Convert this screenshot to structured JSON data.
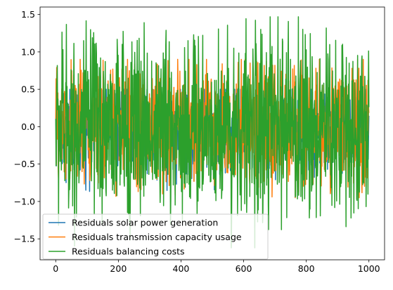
{
  "chart_data": {
    "type": "line",
    "title": "",
    "xlabel": "",
    "ylabel": "",
    "xlim": [
      -50,
      1050
    ],
    "ylim": [
      -1.78,
      1.6
    ],
    "x_ticks": [
      0,
      200,
      400,
      600,
      800,
      1000
    ],
    "y_ticks": [
      -1.5,
      -1.0,
      -0.5,
      0.0,
      0.5,
      1.0,
      1.5
    ],
    "x_tick_labels": [
      "0",
      "200",
      "400",
      "600",
      "800",
      "1000"
    ],
    "y_tick_labels": [
      "−1.5",
      "−1.0",
      "−0.5",
      "0.0",
      "0.5",
      "1.0",
      "1.5"
    ],
    "n_points": 1000,
    "grid": false,
    "legend_position": "lower-left",
    "series": [
      {
        "name": "Residuals solar power generation",
        "color": "#1f77b4",
        "min": -0.95,
        "max": 0.5,
        "x_range": [
          0,
          1000
        ]
      },
      {
        "name": "Residuals transmission capacity usage",
        "color": "#ff7f0e",
        "min": -0.95,
        "max": 0.9,
        "x_range": [
          0,
          1000
        ]
      },
      {
        "name": "Residuals balancing costs",
        "color": "#2ca02c",
        "min": -1.62,
        "max": 1.47,
        "x_range": [
          0,
          1000
        ]
      }
    ]
  }
}
